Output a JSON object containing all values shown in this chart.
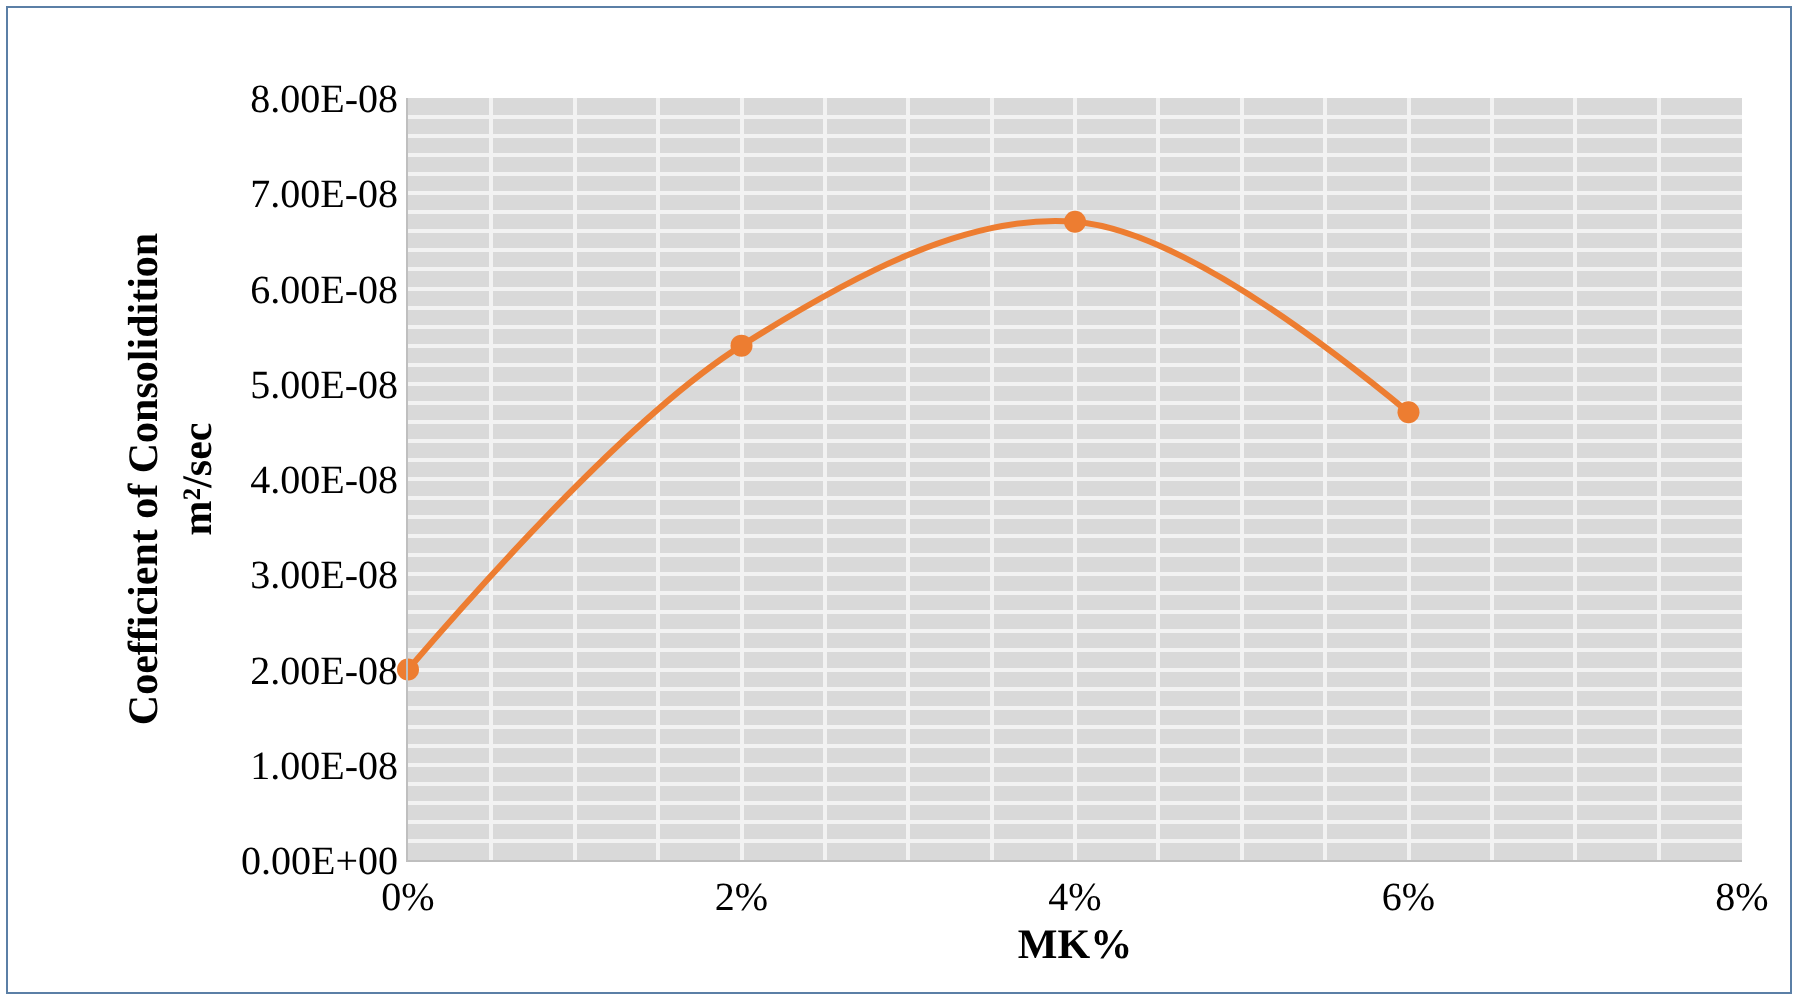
{
  "chart_data": {
    "type": "line",
    "xlabel": "MK%",
    "ylabel": "Coefficient of Consolidition\nm²/sec",
    "x": [
      0,
      2,
      4,
      6
    ],
    "series": [
      {
        "color": "#ed7d31",
        "values": [
          2e-08,
          5.4e-08,
          6.7e-08,
          4.7e-08
        ]
      }
    ],
    "xlim": [
      0,
      8
    ],
    "xticks": [
      {
        "value": 0,
        "label": "0%"
      },
      {
        "value": 2,
        "label": "2%"
      },
      {
        "value": 4,
        "label": "4%"
      },
      {
        "value": 6,
        "label": "6%"
      },
      {
        "value": 8,
        "label": "8%"
      }
    ],
    "ylim": [
      0,
      8e-08
    ],
    "yticks": [
      {
        "value": 0,
        "label": "0.00E+00"
      },
      {
        "value": 1e-08,
        "label": "1.00E-08"
      },
      {
        "value": 2e-08,
        "label": "2.00E-08"
      },
      {
        "value": 3e-08,
        "label": "3.00E-08"
      },
      {
        "value": 4e-08,
        "label": "4.00E-08"
      },
      {
        "value": 5e-08,
        "label": "5.00E-08"
      },
      {
        "value": 6e-08,
        "label": "6.00E-08"
      },
      {
        "value": 7e-08,
        "label": "7.00E-08"
      },
      {
        "value": 8e-08,
        "label": "8.00E-08"
      }
    ],
    "grid": true,
    "marker": "circle",
    "line_style": "solid"
  }
}
